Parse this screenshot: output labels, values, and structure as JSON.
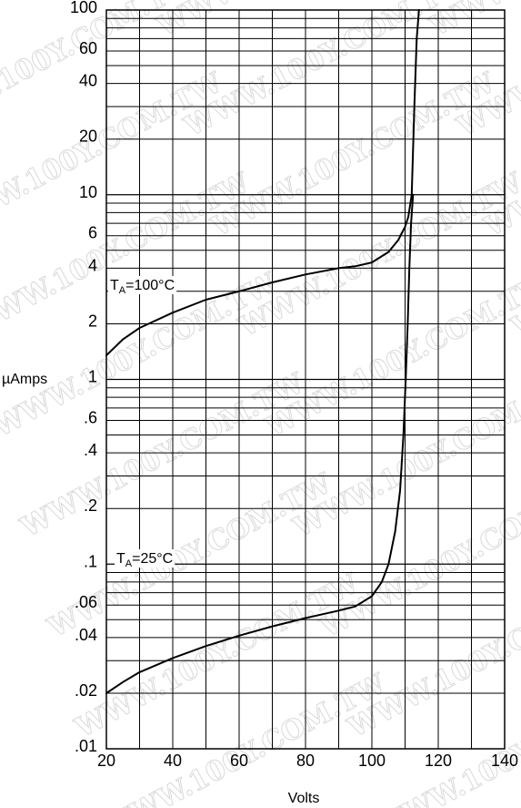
{
  "chart_data": {
    "type": "line",
    "title": "",
    "xlabel": "Volts",
    "ylabel": "µAmps",
    "xlim": [
      20,
      140
    ],
    "ylim": [
      0.01,
      100
    ],
    "yscale": "log",
    "grid": true,
    "x_ticks": [
      20,
      40,
      60,
      80,
      100,
      120,
      140
    ],
    "x_tick_labels": [
      "20",
      "40",
      "60",
      "80",
      "100",
      "120",
      "140"
    ],
    "y_ticks": [
      0.01,
      0.02,
      0.04,
      0.06,
      0.1,
      0.2,
      0.4,
      0.6,
      1,
      2,
      4,
      6,
      10,
      20,
      40,
      60,
      100
    ],
    "y_tick_labels": [
      ".01",
      ".02",
      ".04",
      ".06",
      ".1",
      ".2",
      ".4",
      ".6",
      "1",
      "2",
      "4",
      "6",
      "10",
      "20",
      "40",
      "60",
      "100"
    ],
    "series": [
      {
        "name": "TA=100°C",
        "label_main": "T",
        "label_sub": "A",
        "label_rest": "=100°C",
        "x": [
          20,
          25,
          30,
          40,
          50,
          60,
          70,
          80,
          90,
          95,
          100,
          105,
          108,
          110,
          111,
          112,
          112.8,
          113.5,
          114.2
        ],
        "y": [
          1.35,
          1.65,
          1.9,
          2.3,
          2.7,
          3.0,
          3.35,
          3.7,
          4.0,
          4.1,
          4.3,
          4.9,
          5.7,
          6.7,
          7.6,
          10,
          30,
          70,
          100
        ]
      },
      {
        "name": "TA=25°C",
        "label_main": "T",
        "label_sub": "A",
        "label_rest": "=25°C",
        "x": [
          20,
          25,
          30,
          40,
          50,
          60,
          70,
          80,
          90,
          95,
          100,
          103,
          105,
          107,
          108.5,
          109.5,
          110.2,
          110.8,
          111.3,
          111.8,
          112.4
        ],
        "y": [
          0.02,
          0.023,
          0.026,
          0.031,
          0.036,
          0.041,
          0.046,
          0.051,
          0.056,
          0.059,
          0.067,
          0.08,
          0.1,
          0.15,
          0.25,
          0.5,
          1,
          2,
          4,
          7,
          10
        ]
      }
    ],
    "watermark": "WWW.100Y.COM.TW"
  }
}
